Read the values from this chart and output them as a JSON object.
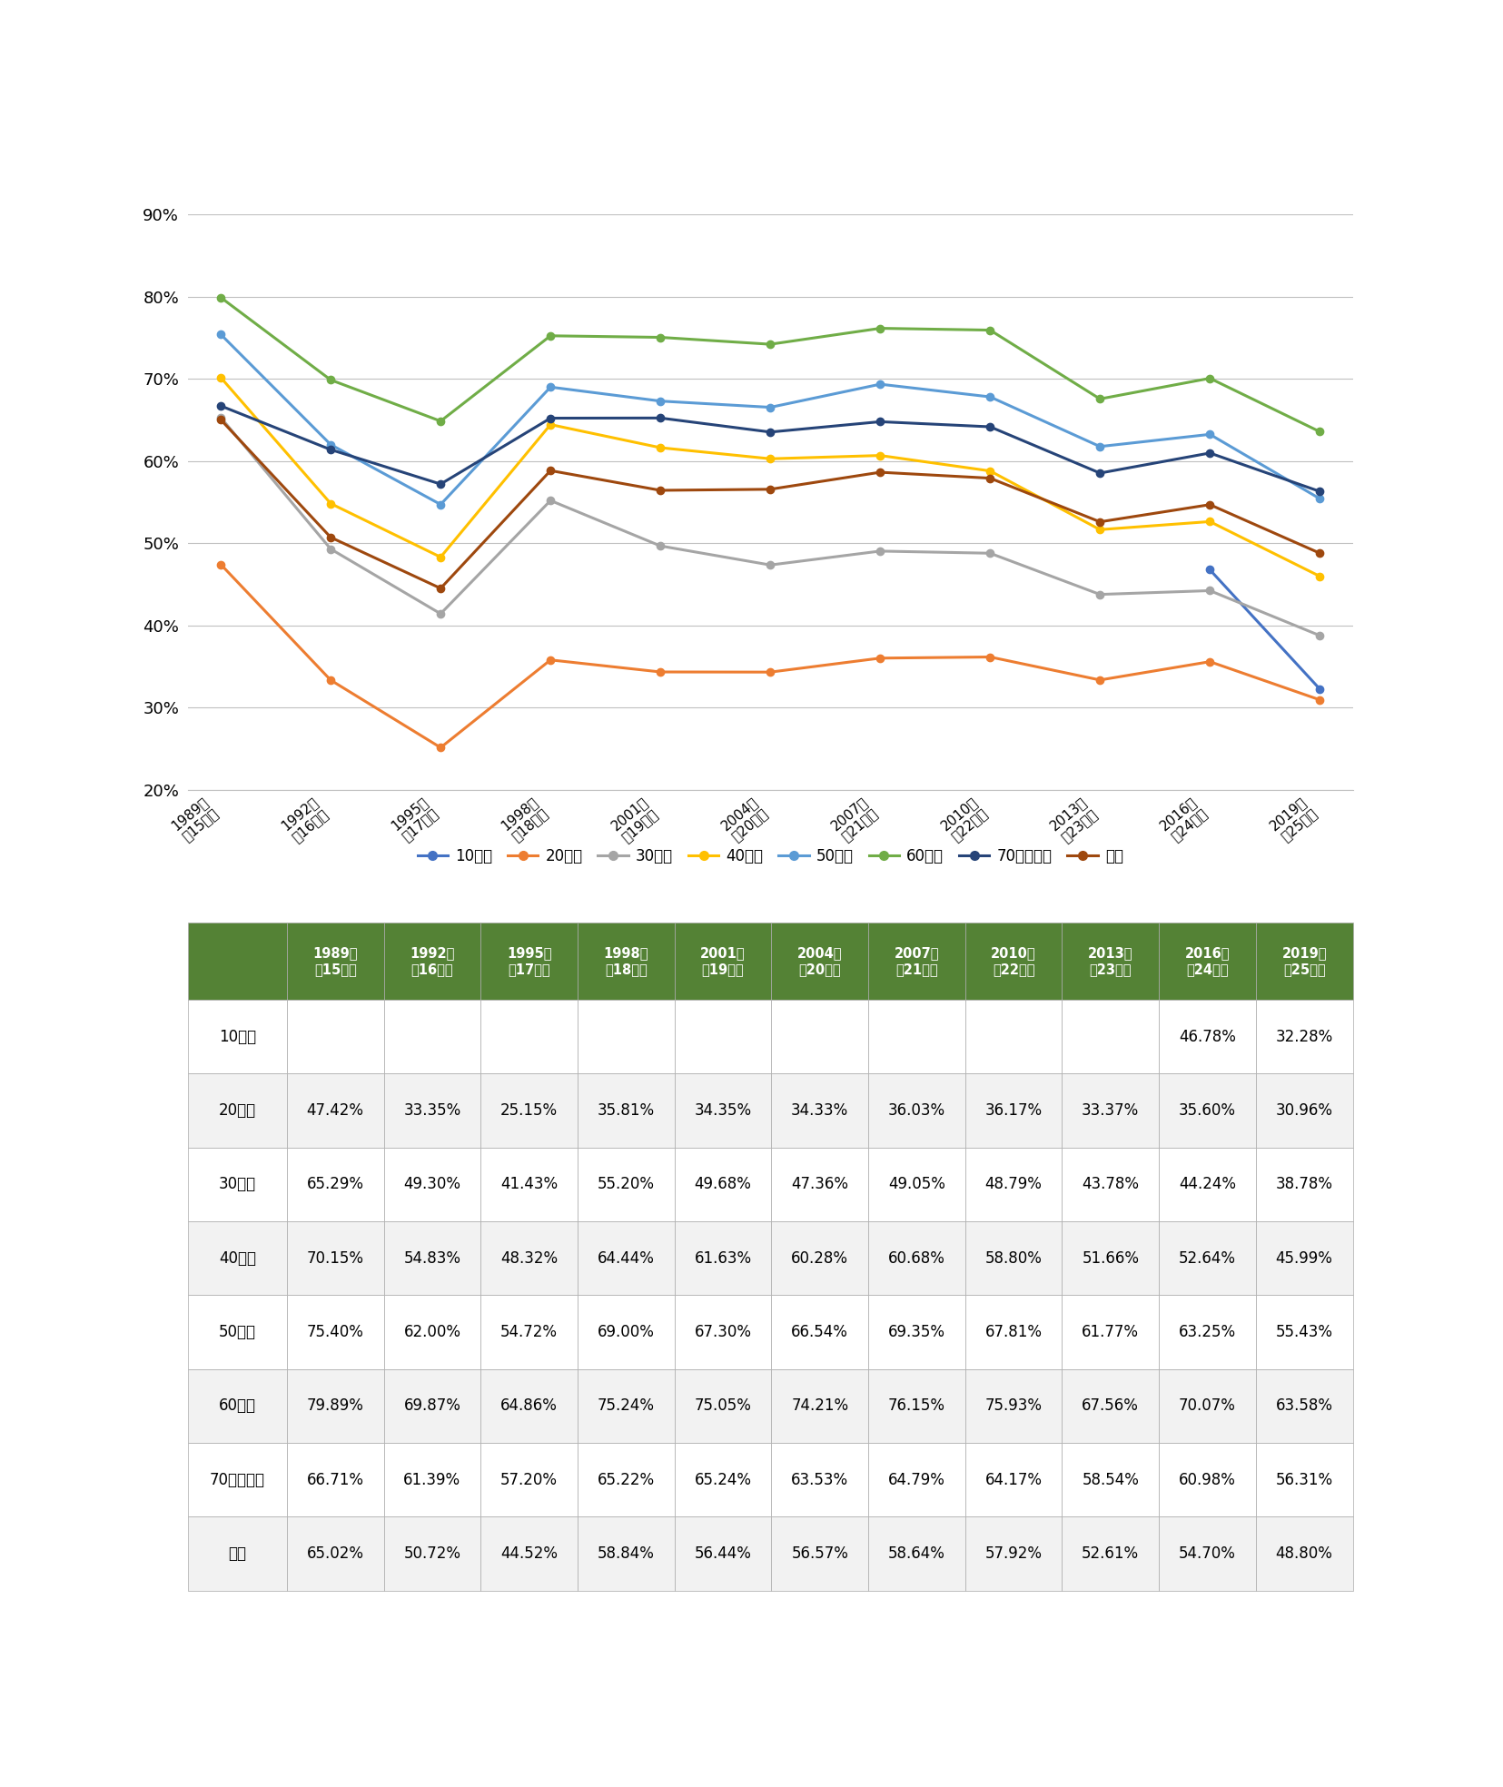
{
  "year_labels": [
    "1989年\n（15回）",
    "1992年\n（16回）",
    "1995年\n（17回）",
    "1998年\n（18回）",
    "2001年\n（19回）",
    "2004年\n（20回）",
    "2007年\n（21回）",
    "2010年\n（22回）",
    "2013年\n（23回）",
    "2016年\n（24回）",
    "2019年\n（25回）"
  ],
  "series": {
    "10歳代": {
      "color": "#4472C4",
      "data": [
        null,
        null,
        null,
        null,
        null,
        null,
        null,
        null,
        null,
        46.78,
        32.28
      ]
    },
    "20歳代": {
      "color": "#ED7D31",
      "data": [
        47.42,
        33.35,
        25.15,
        35.81,
        34.35,
        34.33,
        36.03,
        36.17,
        33.37,
        35.6,
        30.96
      ]
    },
    "30歳代": {
      "color": "#A5A5A5",
      "data": [
        65.29,
        49.3,
        41.43,
        55.2,
        49.68,
        47.36,
        49.05,
        48.79,
        43.78,
        44.24,
        38.78
      ]
    },
    "40歳代": {
      "color": "#FFC000",
      "data": [
        70.15,
        54.83,
        48.32,
        64.44,
        61.63,
        60.28,
        60.68,
        58.8,
        51.66,
        52.64,
        45.99
      ]
    },
    "50歳代": {
      "color": "#5B9BD5",
      "data": [
        75.4,
        62.0,
        54.72,
        69.0,
        67.3,
        66.54,
        69.35,
        67.81,
        61.77,
        63.25,
        55.43
      ]
    },
    "60歳代": {
      "color": "#70AD47",
      "data": [
        79.89,
        69.87,
        64.86,
        75.24,
        75.05,
        74.21,
        76.15,
        75.93,
        67.56,
        70.07,
        63.58
      ]
    },
    "70歳代以上": {
      "color": "#264478",
      "data": [
        66.71,
        61.39,
        57.2,
        65.22,
        65.24,
        63.53,
        64.79,
        64.17,
        58.54,
        60.98,
        56.31
      ]
    },
    "全体": {
      "color": "#9E480E",
      "data": [
        65.02,
        50.72,
        44.52,
        58.84,
        56.44,
        56.57,
        58.64,
        57.92,
        52.61,
        54.7,
        48.8
      ]
    }
  },
  "table_rows": {
    "10歳代": [
      null,
      null,
      null,
      null,
      null,
      null,
      null,
      null,
      null,
      46.78,
      32.28
    ],
    "20歳代": [
      47.42,
      33.35,
      25.15,
      35.81,
      34.35,
      34.33,
      36.03,
      36.17,
      33.37,
      35.6,
      30.96
    ],
    "30歳代": [
      65.29,
      49.3,
      41.43,
      55.2,
      49.68,
      47.36,
      49.05,
      48.79,
      43.78,
      44.24,
      38.78
    ],
    "40歳代": [
      70.15,
      54.83,
      48.32,
      64.44,
      61.63,
      60.28,
      60.68,
      58.8,
      51.66,
      52.64,
      45.99
    ],
    "50歳代": [
      75.4,
      62.0,
      54.72,
      69.0,
      67.3,
      66.54,
      69.35,
      67.81,
      61.77,
      63.25,
      55.43
    ],
    "60歳代": [
      79.89,
      69.87,
      64.86,
      75.24,
      75.05,
      74.21,
      76.15,
      75.93,
      67.56,
      70.07,
      63.58
    ],
    "70歳代以上": [
      66.71,
      61.39,
      57.2,
      65.22,
      65.24,
      63.53,
      64.79,
      64.17,
      58.54,
      60.98,
      56.31
    ],
    "全体": [
      65.02,
      50.72,
      44.52,
      58.84,
      56.44,
      56.57,
      58.64,
      57.92,
      52.61,
      54.7,
      48.8
    ]
  },
  "ylim": [
    20,
    90
  ],
  "yticks": [
    20,
    30,
    40,
    50,
    60,
    70,
    80,
    90
  ],
  "header_color": "#548235",
  "white": "#FFFFFF",
  "light_gray": "#F2F2F2",
  "grid_color": "#C0C0C0",
  "border_color": "#AAAAAA"
}
